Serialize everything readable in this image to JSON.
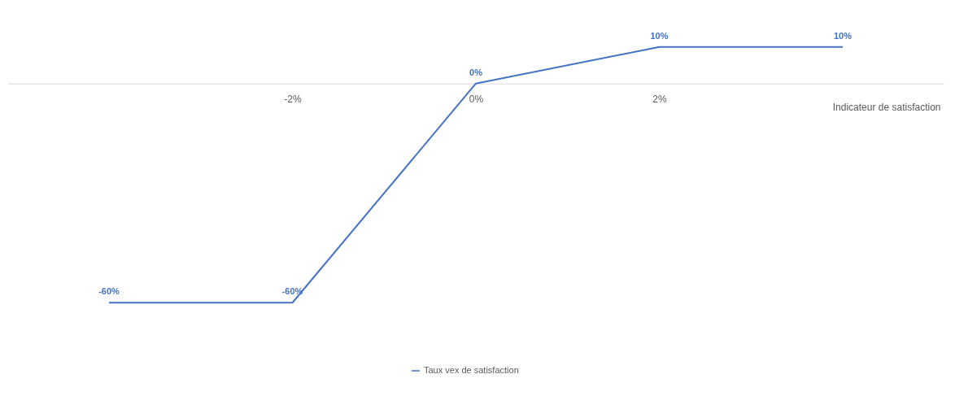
{
  "chart_data": {
    "type": "line",
    "xlabel": "Indicateur de satisfaction",
    "categories": [
      null,
      "-2%",
      "0%",
      "2%",
      null
    ],
    "tick_labels": "x",
    "legend": "bottom",
    "marker": "none",
    "series": [
      {
        "name": "Taux vex de satisfaction",
        "color": "#4472c4",
        "values": [
          -60,
          -60,
          0,
          10,
          10
        ],
        "value_labels": [
          "-60%",
          "-60%",
          "0%",
          "10%",
          "10%"
        ]
      }
    ]
  }
}
